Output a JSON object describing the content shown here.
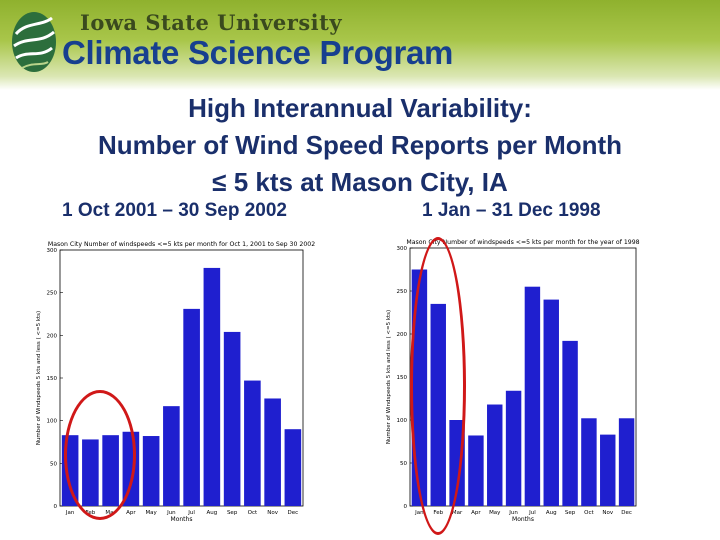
{
  "header": {
    "university": "Iowa State University",
    "program": "Climate Science Program",
    "logo_icon": "swirl-globe-icon"
  },
  "slide": {
    "title_line1": "High Interannual Variability:",
    "title_line2": "Number of Wind Speed Reports per Month",
    "title_line3": "≤ 5 kts at Mason City, IA",
    "subtitle_left": "1 Oct 2001 – 30 Sep 2002",
    "subtitle_right": "1 Jan – 31 Dec 1998"
  },
  "chart_data": [
    {
      "type": "bar",
      "title": "Mason City Number of windspeeds <=5 kts per month for Oct 1, 2001 to Sep 30 2002",
      "xlabel": "Months",
      "ylabel": "Number of Windspeeds 5 kts and less ( <=5 kts)",
      "categories": [
        "Jan",
        "Feb",
        "Mar",
        "Apr",
        "May",
        "Jun",
        "Jul",
        "Aug",
        "Sep",
        "Oct",
        "Nov",
        "Dec"
      ],
      "values": [
        83,
        78,
        83,
        87,
        82,
        117,
        231,
        279,
        204,
        147,
        126,
        90
      ],
      "ylim": [
        0,
        300
      ],
      "yticks": [
        0,
        50,
        100,
        150,
        200,
        250,
        300
      ],
      "bar_color": "#1f1fcf",
      "highlight": "Jan-Mar circled"
    },
    {
      "type": "bar",
      "title": "Mason City Number of windspeeds <=5 kts per month for the year of 1998",
      "xlabel": "Months",
      "ylabel": "Number of Windspeeds 5 kts and less ( <=5 kts)",
      "categories": [
        "Jan",
        "Feb",
        "Mar",
        "Apr",
        "May",
        "Jun",
        "Jul",
        "Aug",
        "Sep",
        "Oct",
        "Nov",
        "Dec"
      ],
      "values": [
        275,
        235,
        100,
        82,
        118,
        134,
        255,
        240,
        192,
        102,
        83,
        102
      ],
      "ylim": [
        0,
        300
      ],
      "yticks": [
        0,
        50,
        100,
        150,
        200,
        250,
        300
      ],
      "bar_color": "#1f1fcf",
      "highlight": "Jan-Feb circled"
    }
  ],
  "colors": {
    "title": "#1a2f6b",
    "program": "#173f8f",
    "header_green": "#8fb12e",
    "highlight_ring": "#d01818"
  }
}
